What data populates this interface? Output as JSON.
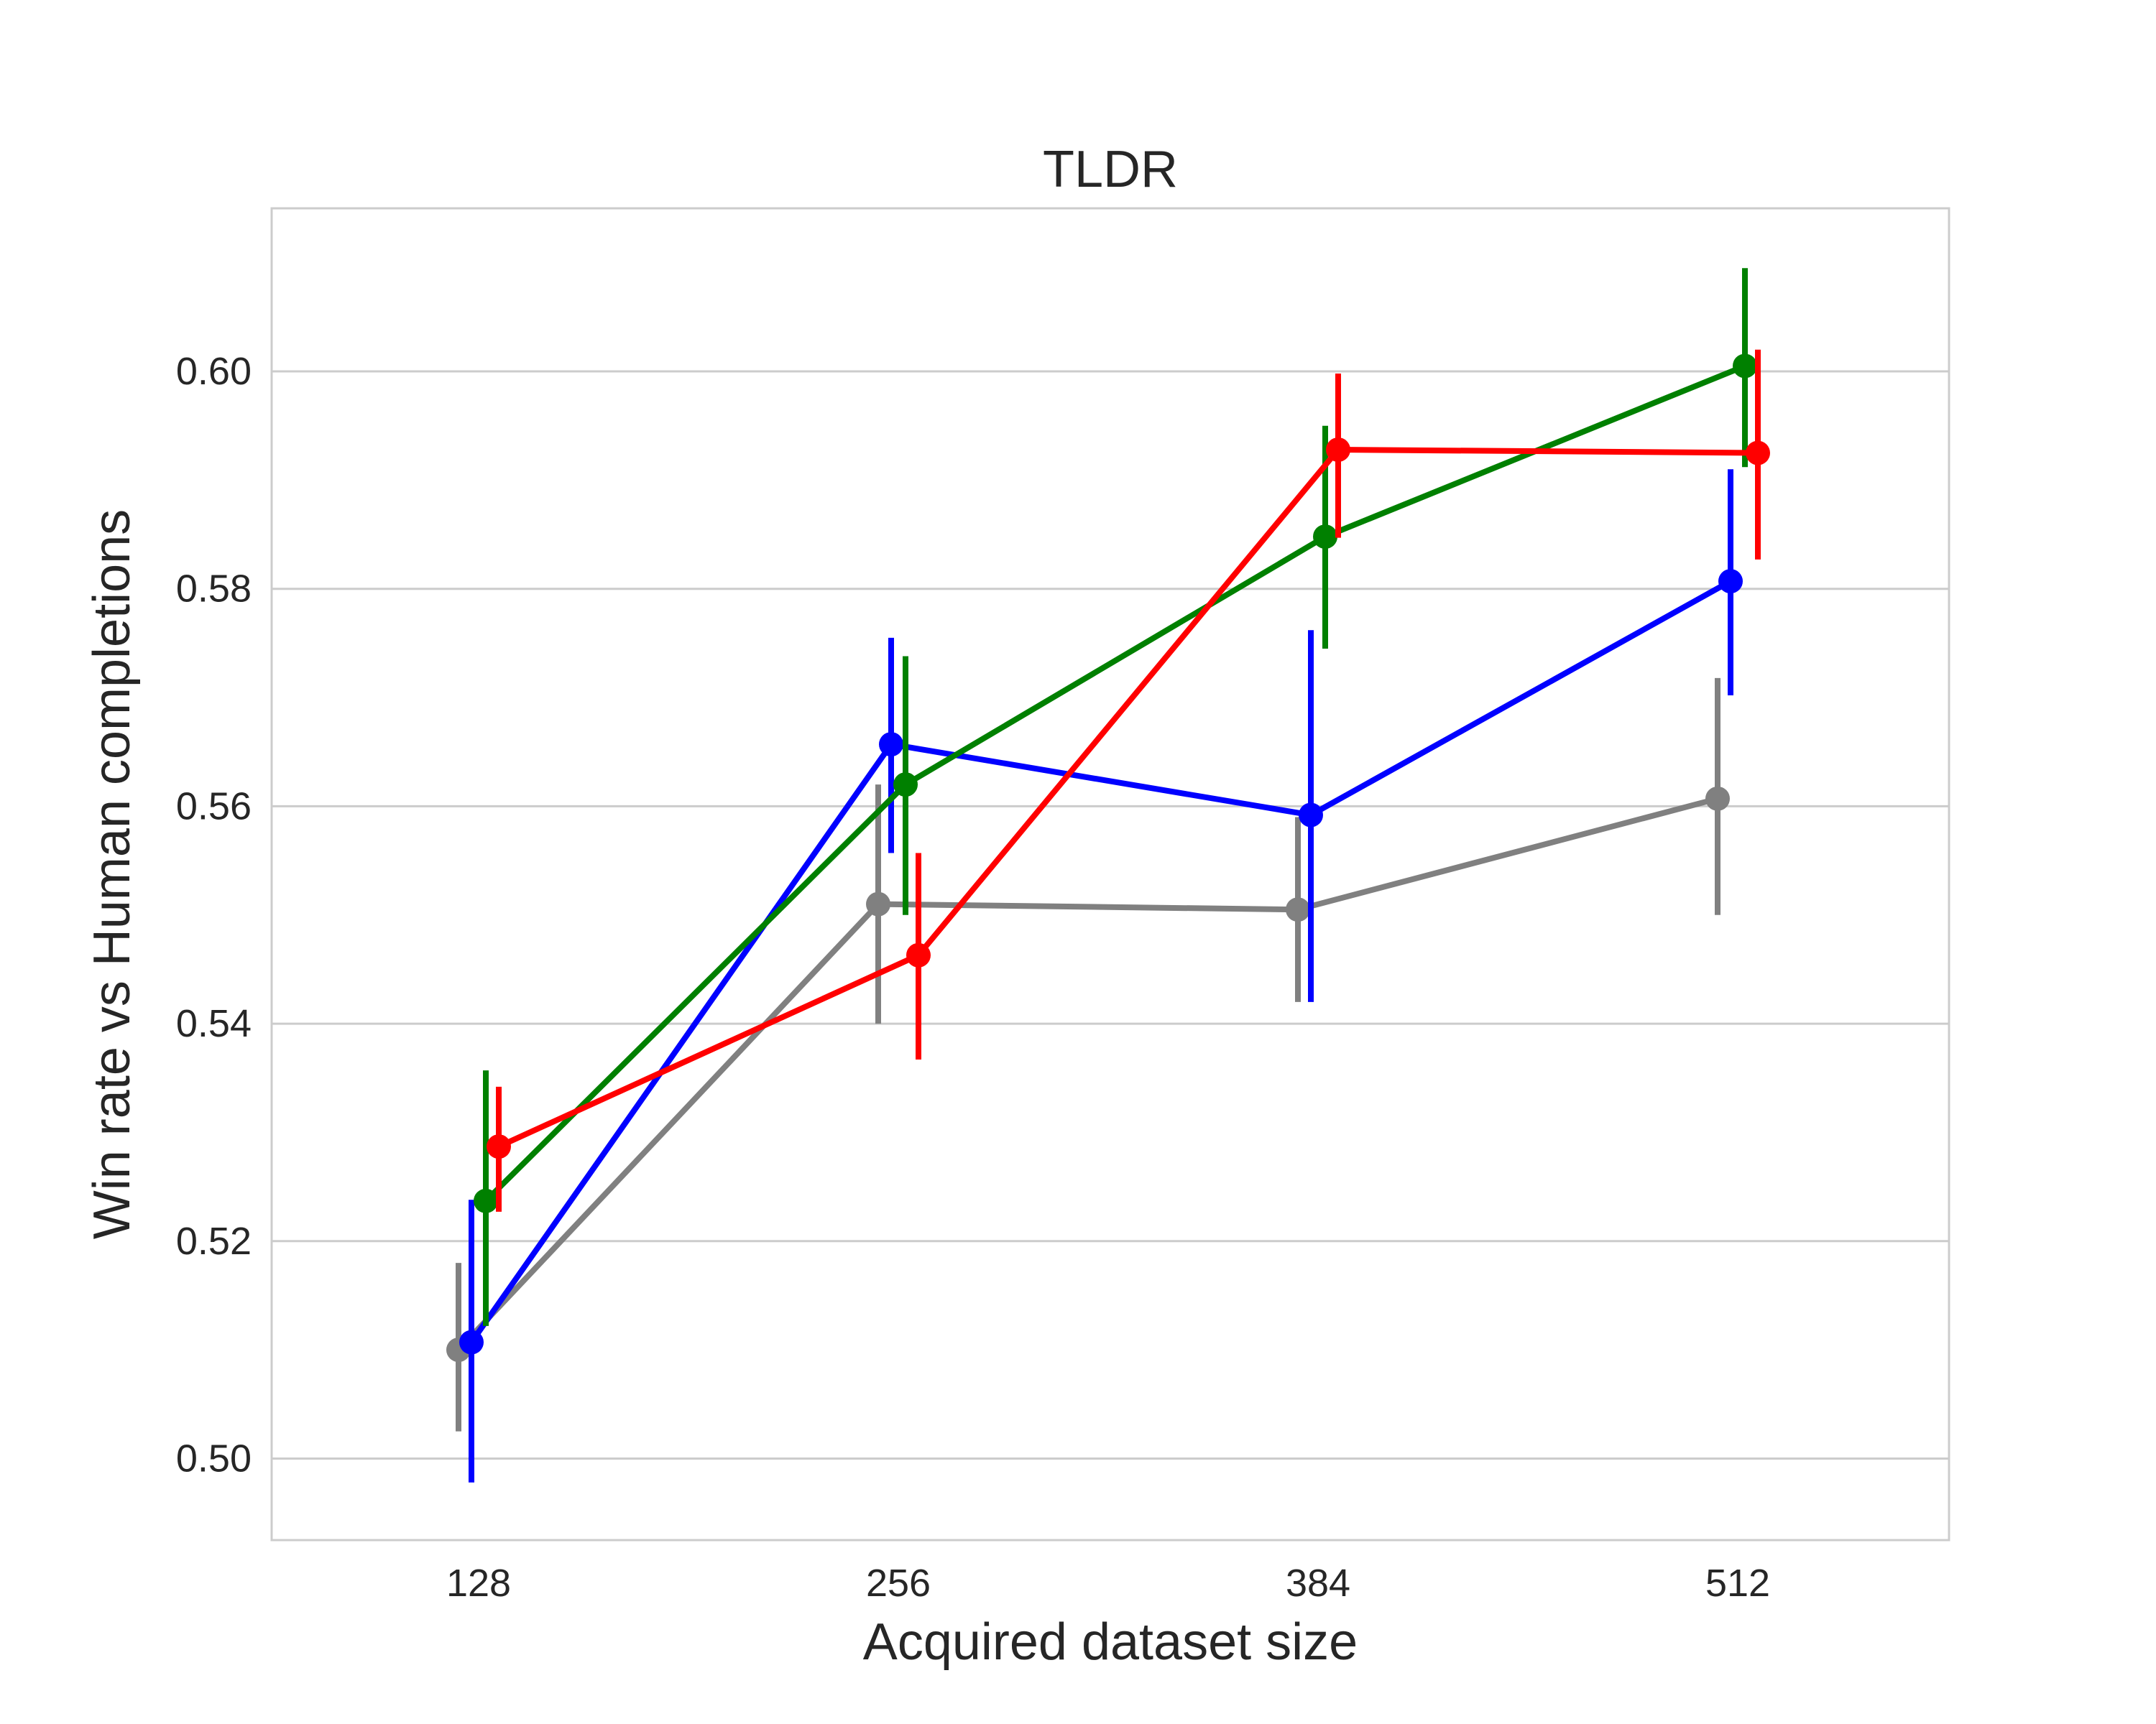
{
  "chart_data": {
    "type": "line",
    "title": "TLDR",
    "xlabel": "Acquired dataset size",
    "ylabel": "Win rate vs Human completions",
    "categories": [
      "128",
      "256",
      "384",
      "512"
    ],
    "yticks": [
      "0.50",
      "0.52",
      "0.54",
      "0.56",
      "0.58",
      "0.60"
    ],
    "ylim": [
      0.4925,
      0.615
    ],
    "grid": "horizontal",
    "error_bars": true,
    "legend": "none",
    "series": [
      {
        "color": "#808080",
        "values": [
          0.51,
          0.551,
          0.5505,
          0.5607
        ],
        "err_low": [
          0.5025,
          0.54,
          0.542,
          0.55
        ],
        "err_high": [
          0.518,
          0.562,
          0.559,
          0.5718
        ]
      },
      {
        "color": "#0000ff",
        "values": [
          0.5107,
          0.5657,
          0.5592,
          0.5807
        ],
        "err_low": [
          0.4978,
          0.5557,
          0.542,
          0.5702
        ],
        "err_high": [
          0.5238,
          0.5755,
          0.5762,
          0.591
        ]
      },
      {
        "color": "#008000",
        "values": [
          0.5237,
          0.562,
          0.5848,
          0.6005
        ],
        "err_low": [
          0.5122,
          0.55,
          0.5745,
          0.5912
        ],
        "err_high": [
          0.5357,
          0.5738,
          0.595,
          0.6095
        ]
      },
      {
        "color": "#ff0000",
        "values": [
          0.5287,
          0.5463,
          0.5928,
          0.5925
        ],
        "err_low": [
          0.5227,
          0.5367,
          0.5847,
          0.5827
        ],
        "err_high": [
          0.5342,
          0.5557,
          0.5998,
          0.602
        ]
      }
    ]
  }
}
